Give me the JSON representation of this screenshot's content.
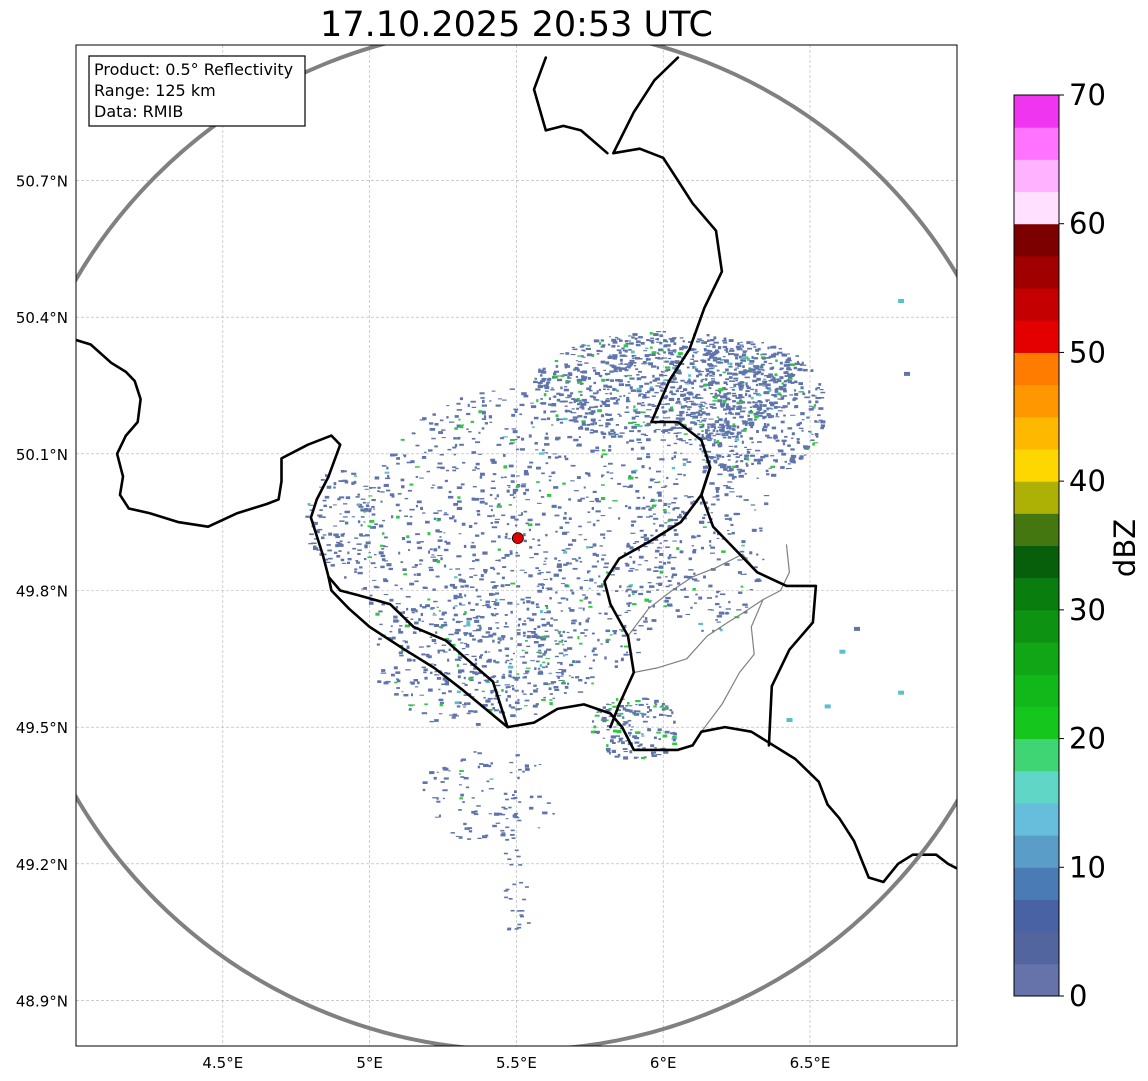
{
  "title": "17.10.2025 20:53 UTC",
  "info_box": {
    "product": "Product: 0.5° Reflectivity",
    "range": "Range: 125 km",
    "data_source": "Data: RMIB"
  },
  "axes": {
    "lon_range": [
      4.0,
      7.0
    ],
    "lat_range": [
      48.8,
      50.98
    ],
    "x_ticks": [
      {
        "value": 4.5,
        "label": "4.5°E"
      },
      {
        "value": 5.0,
        "label": "5°E"
      },
      {
        "value": 5.5,
        "label": "5.5°E"
      },
      {
        "value": 6.0,
        "label": "6°E"
      },
      {
        "value": 6.5,
        "label": "6.5°E"
      }
    ],
    "y_ticks": [
      {
        "value": 48.9,
        "label": "48.9°N"
      },
      {
        "value": 49.2,
        "label": "49.2°N"
      },
      {
        "value": 49.5,
        "label": "49.5°N"
      },
      {
        "value": 49.8,
        "label": "49.8°N"
      },
      {
        "value": 50.1,
        "label": "50.1°N"
      },
      {
        "value": 50.4,
        "label": "50.4°N"
      },
      {
        "value": 50.7,
        "label": "50.7°N"
      }
    ],
    "grid": true
  },
  "radar": {
    "site_lon": 5.505,
    "site_lat": 49.915,
    "range_km": 125,
    "site_color": "#e00000",
    "ring_color": "#808080"
  },
  "colorbar": {
    "label": "dBZ",
    "min": 0,
    "max": 70,
    "step": 2.5,
    "tick_values": [
      0,
      10,
      20,
      30,
      40,
      50,
      60,
      70
    ],
    "tick_labels": [
      "0",
      "10",
      "20",
      "30",
      "40",
      "50",
      "60",
      "70"
    ],
    "colors": [
      "#6673aa",
      "#53659f",
      "#4862a3",
      "#4b7bb4",
      "#5a9dc8",
      "#66bedc",
      "#5fd6c6",
      "#3fd575",
      "#15c71d",
      "#12b81a",
      "#10a615",
      "#0e9212",
      "#0a7d0f",
      "#075f0b",
      "#457711",
      "#adb005",
      "#ffd700",
      "#ffb800",
      "#ff9800",
      "#ff7c00",
      "#e50000",
      "#c40000",
      "#a00000",
      "#7d0000",
      "#ffe0ff",
      "#ffb2ff",
      "#ff73ff",
      "#ef35ef"
    ]
  },
  "map_colors": {
    "border": "#000000",
    "admin_border": "#808080",
    "echo_weak": "#5e74ab",
    "echo_moderate": "#2fc840",
    "echo_cyan": "#59c2c8"
  },
  "borders": {
    "national": [
      [
        [
          4.0,
          50.35
        ],
        [
          4.05,
          50.34
        ],
        [
          4.12,
          50.3
        ],
        [
          4.17,
          50.28
        ],
        [
          4.2,
          50.26
        ],
        [
          4.22,
          50.22
        ],
        [
          4.21,
          50.17
        ],
        [
          4.17,
          50.14
        ],
        [
          4.14,
          50.1
        ],
        [
          4.16,
          50.05
        ],
        [
          4.15,
          50.01
        ],
        [
          4.18,
          49.98
        ],
        [
          4.25,
          49.97
        ],
        [
          4.35,
          49.95
        ],
        [
          4.45,
          49.94
        ],
        [
          4.55,
          49.97
        ],
        [
          4.65,
          49.99
        ],
        [
          4.69,
          50.0
        ],
        [
          4.7,
          50.04
        ],
        [
          4.7,
          50.09
        ],
        [
          4.79,
          50.12
        ],
        [
          4.87,
          50.14
        ],
        [
          4.9,
          50.12
        ],
        [
          4.86,
          50.05
        ],
        [
          4.82,
          50.0
        ],
        [
          4.8,
          49.96
        ],
        [
          4.84,
          49.88
        ],
        [
          4.86,
          49.83
        ],
        [
          4.9,
          49.8
        ],
        [
          4.96,
          49.79
        ],
        [
          5.07,
          49.77
        ],
        [
          5.15,
          49.72
        ],
        [
          5.26,
          49.69
        ],
        [
          5.33,
          49.65
        ],
        [
          5.42,
          49.6
        ],
        [
          5.44,
          49.56
        ],
        [
          5.47,
          49.5
        ],
        [
          5.56,
          49.51
        ],
        [
          5.64,
          49.54
        ],
        [
          5.73,
          49.55
        ],
        [
          5.82,
          49.53
        ],
        [
          5.86,
          49.5
        ],
        [
          5.9,
          49.45
        ],
        [
          5.97,
          49.45
        ],
        [
          6.05,
          49.45
        ],
        [
          6.1,
          49.46
        ],
        [
          6.13,
          49.49
        ],
        [
          6.21,
          49.5
        ],
        [
          6.3,
          49.49
        ],
        [
          6.35,
          49.47
        ],
        [
          6.4,
          49.45
        ],
        [
          6.45,
          49.43
        ],
        [
          6.53,
          49.38
        ],
        [
          6.56,
          49.33
        ],
        [
          6.6,
          49.3
        ],
        [
          6.65,
          49.25
        ],
        [
          6.7,
          49.17
        ],
        [
          6.75,
          49.16
        ],
        [
          6.8,
          49.2
        ],
        [
          6.85,
          49.22
        ],
        [
          6.93,
          49.22
        ],
        [
          6.97,
          49.2
        ],
        [
          7.0,
          49.19
        ]
      ],
      [
        [
          5.96,
          50.17
        ],
        [
          6.05,
          50.17
        ],
        [
          6.13,
          50.13
        ],
        [
          6.16,
          50.07
        ],
        [
          6.13,
          50.01
        ],
        [
          6.17,
          49.94
        ],
        [
          6.23,
          49.9
        ],
        [
          6.32,
          49.84
        ],
        [
          6.42,
          49.81
        ],
        [
          6.52,
          49.81
        ],
        [
          6.51,
          49.73
        ],
        [
          6.43,
          49.67
        ],
        [
          6.37,
          49.59
        ],
        [
          6.36,
          49.46
        ]
      ],
      [
        [
          6.16,
          50.07
        ],
        [
          6.13,
          50.01
        ],
        [
          6.06,
          49.95
        ],
        [
          5.96,
          49.91
        ],
        [
          5.85,
          49.87
        ],
        [
          5.8,
          49.82
        ],
        [
          5.82,
          49.77
        ],
        [
          5.88,
          49.7
        ],
        [
          5.9,
          49.62
        ],
        [
          5.85,
          49.55
        ],
        [
          5.82,
          49.5
        ]
      ],
      [
        [
          5.81,
          50.76
        ],
        [
          5.72,
          50.81
        ],
        [
          5.66,
          50.82
        ],
        [
          5.6,
          50.81
        ],
        [
          5.56,
          50.9
        ],
        [
          5.6,
          50.97
        ]
      ],
      [
        [
          5.96,
          50.17
        ],
        [
          6.02,
          50.26
        ],
        [
          6.09,
          50.33
        ],
        [
          6.14,
          50.42
        ],
        [
          6.2,
          50.5
        ],
        [
          6.18,
          50.59
        ],
        [
          6.1,
          50.65
        ],
        [
          6.05,
          50.7
        ],
        [
          6.0,
          50.75
        ],
        [
          5.92,
          50.77
        ],
        [
          5.83,
          50.76
        ],
        [
          5.9,
          50.85
        ],
        [
          5.97,
          50.92
        ],
        [
          6.05,
          50.97
        ]
      ],
      [
        [
          5.47,
          49.5
        ],
        [
          5.32,
          49.58
        ],
        [
          5.22,
          49.63
        ],
        [
          5.12,
          49.67
        ],
        [
          5.0,
          49.72
        ],
        [
          4.93,
          49.76
        ],
        [
          4.87,
          49.8
        ],
        [
          4.86,
          49.83
        ]
      ]
    ],
    "admin": [
      [
        [
          6.13,
          49.49
        ],
        [
          6.2,
          49.55
        ],
        [
          6.26,
          49.62
        ],
        [
          6.31,
          49.66
        ],
        [
          6.3,
          49.72
        ],
        [
          6.34,
          49.78
        ],
        [
          6.4,
          49.8
        ],
        [
          6.43,
          49.84
        ],
        [
          6.42,
          49.9
        ]
      ],
      [
        [
          5.9,
          49.62
        ],
        [
          5.98,
          49.63
        ],
        [
          6.08,
          49.65
        ],
        [
          6.15,
          49.7
        ],
        [
          6.22,
          49.73
        ],
        [
          6.27,
          49.75
        ],
        [
          6.34,
          49.78
        ]
      ],
      [
        [
          5.88,
          49.7
        ],
        [
          5.95,
          49.76
        ],
        [
          6.03,
          49.8
        ],
        [
          6.1,
          49.83
        ],
        [
          6.18,
          49.85
        ],
        [
          6.27,
          49.88
        ],
        [
          6.32,
          49.84
        ]
      ]
    ]
  }
}
